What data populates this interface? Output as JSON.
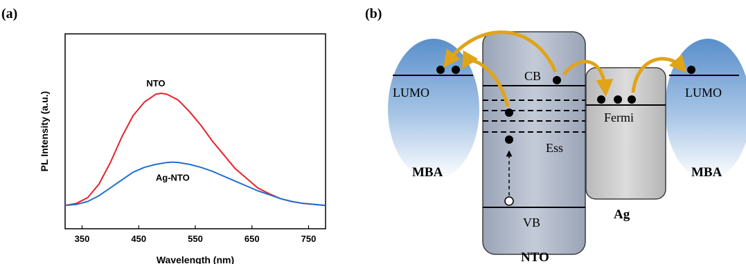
{
  "panel_a": {
    "label": "(a)"
  },
  "panel_b": {
    "label": "(b)",
    "labels": {
      "lumo_left": "LUMO",
      "lumo_right": "LUMO",
      "mba_left": "MBA",
      "mba_right": "MBA",
      "cb": "CB",
      "vb": "VB",
      "ess": "Ess",
      "fermi": "Fermi",
      "nto": "NTO",
      "ag": "Ag"
    }
  },
  "chart_data": {
    "type": "line",
    "xlabel": "Wavelength (nm)",
    "ylabel": "PL Intensity (a.u.)",
    "xlim": [
      320,
      780
    ],
    "ylim": [
      0,
      100
    ],
    "xticks": [
      350,
      450,
      550,
      650,
      750
    ],
    "y_tick_labels": false,
    "series": [
      {
        "name": "NTO",
        "color": "#e8202a",
        "x": [
          320,
          340,
          360,
          380,
          400,
          420,
          440,
          460,
          480,
          490,
          500,
          520,
          540,
          560,
          580,
          600,
          620,
          640,
          660,
          680,
          700,
          720,
          740,
          760,
          780
        ],
        "y": [
          12,
          13,
          16,
          23,
          34,
          47,
          58,
          65,
          69,
          69.5,
          69,
          66,
          60,
          53,
          45,
          38,
          31,
          26,
          21,
          18,
          15.5,
          14,
          13,
          12.5,
          12
        ]
      },
      {
        "name": "Ag-NTO",
        "color": "#1f6fd1",
        "x": [
          320,
          340,
          360,
          380,
          400,
          420,
          440,
          460,
          480,
          500,
          510,
          520,
          540,
          560,
          580,
          600,
          620,
          640,
          660,
          680,
          700,
          720,
          740,
          760,
          780
        ],
        "y": [
          12,
          12.5,
          14,
          17,
          21,
          25,
          29,
          31.5,
          33,
          34,
          34.2,
          34,
          33,
          31.5,
          29.5,
          27,
          24.5,
          22,
          19.5,
          17.5,
          15.5,
          14,
          13,
          12.5,
          12
        ]
      }
    ]
  }
}
